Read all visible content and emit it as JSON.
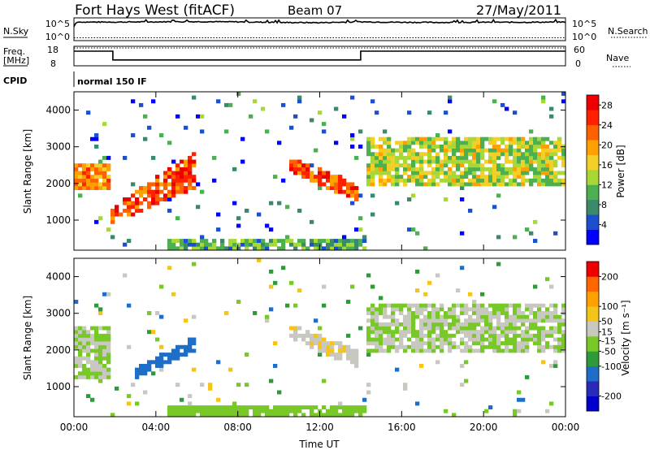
{
  "header": {
    "station": "Fort Hays West (fitACF)",
    "beam": "Beam 07",
    "date": "27/May/2011"
  },
  "noise_panel": {
    "left_label": "N.Sky",
    "right_label": "N.Search",
    "left_ticks": [
      "10^5",
      "10^0"
    ],
    "right_ticks": [
      "10^5",
      "10^0"
    ]
  },
  "freq_panel": {
    "left_label_1": "Freq.",
    "left_label_2": "[MHz]",
    "right_label": "Nave",
    "left_ticks": [
      "18",
      "8"
    ],
    "right_ticks": [
      "60",
      "0"
    ]
  },
  "cpid": {
    "label": "CPID",
    "value": "normal 150 IF"
  },
  "colors": {
    "power": [
      "#0000ff",
      "#1c4fd0",
      "#3a8a6a",
      "#4caf50",
      "#a8d838",
      "#f2d028",
      "#ffa000",
      "#ff6000",
      "#ff2000",
      "#ee0000"
    ],
    "velocity": [
      "#0000cc",
      "#2a2ab8",
      "#1c6ec8",
      "#2f9a3a",
      "#78c828",
      "#c8c8c0",
      "#f5c418",
      "#ffa000",
      "#ff6600",
      "#ee0000"
    ]
  },
  "chart_data": [
    {
      "type": "line",
      "title": "N.Sky / N.Search",
      "x_unit": "hours UT",
      "series": [
        {
          "name": "N.Sky",
          "x": [
            0.0,
            0.1,
            0.2,
            2,
            4,
            6,
            8,
            10,
            12,
            14,
            16,
            18,
            20,
            22,
            24
          ],
          "y_log10": [
            3.0,
            4.0,
            4.15,
            4.15,
            4.2,
            4.25,
            4.2,
            4.05,
            4.0,
            4.2,
            4.1,
            4.05,
            4.1,
            4.1,
            4.15
          ]
        },
        {
          "name": "N.Search",
          "x": [
            0,
            6,
            12,
            18,
            24
          ],
          "y_log10": [
            0.2,
            0.2,
            0.2,
            0.2,
            0.2
          ]
        }
      ]
    },
    {
      "type": "line",
      "title": "Freq. [MHz] / Nave",
      "x_unit": "hours UT",
      "series": [
        {
          "name": "Freq.",
          "x": [
            0,
            1.9,
            1.9,
            14.0,
            14.0,
            24
          ],
          "y": [
            15.5,
            15.5,
            11.0,
            11.0,
            15.5,
            15.5
          ]
        },
        {
          "name": "Nave",
          "x": [
            0,
            24
          ],
          "y": [
            55,
            55
          ]
        }
      ]
    },
    {
      "type": "heatmap",
      "ylabel": "Slant Range [km]",
      "xlabel": "Time UT",
      "xlim": [
        0,
        24
      ],
      "ylim": [
        180,
        4500
      ],
      "x_ticks": [
        "00:00",
        "04:00",
        "08:00",
        "12:00",
        "16:00",
        "20:00",
        "00:00"
      ],
      "y_ticks": [
        1000,
        2000,
        3000,
        4000
      ],
      "colorbar_label": "Power [dB]",
      "colorbar_ticks": [
        4,
        8,
        12,
        16,
        20,
        24,
        28
      ],
      "colorbar_range": [
        0,
        30
      ],
      "features": [
        {
          "name": "evening band",
          "x_range": [
            0,
            1.8
          ],
          "range_km": [
            1850,
            2550
          ],
          "value": 20
        },
        {
          "name": "rising arc",
          "x_range": [
            1.8,
            6
          ],
          "range_km_start": [
            900,
            1350
          ],
          "range_km_end": [
            1900,
            2900
          ],
          "value": 24
        },
        {
          "name": "noon arc",
          "x_range": [
            10.6,
            13.9
          ],
          "range_km_start": [
            2300,
            2700
          ],
          "range_km_end": [
            1500,
            2000
          ],
          "value": 24
        },
        {
          "name": "afternoon band",
          "x_range": [
            14.2,
            24
          ],
          "range_km": [
            1950,
            3300
          ],
          "value": 14
        },
        {
          "name": "ground scatter",
          "x_range": [
            4.6,
            14.2
          ],
          "range_km": [
            200,
            460
          ],
          "value": 10
        }
      ]
    },
    {
      "type": "heatmap",
      "ylabel": "Slant Range [km]",
      "xlabel": "Time UT",
      "xlim": [
        0,
        24
      ],
      "ylim": [
        180,
        4500
      ],
      "x_ticks": [
        "00:00",
        "04:00",
        "08:00",
        "12:00",
        "16:00",
        "20:00",
        "00:00"
      ],
      "y_ticks": [
        1000,
        2000,
        3000,
        4000
      ],
      "colorbar_label": "Velocity [m s⁻¹]",
      "colorbar_ticks": [
        -200,
        -100,
        -50,
        -15,
        15,
        50,
        100,
        200
      ],
      "colorbar_range": [
        -250,
        250
      ],
      "features": [
        {
          "name": "evening band",
          "x_range": [
            0,
            1.8
          ],
          "range_km": [
            1200,
            2600
          ],
          "value": 0
        },
        {
          "name": "rising arc",
          "x_range": [
            3,
            6
          ],
          "range_km_start": [
            1200,
            1500
          ],
          "range_km_end": [
            2000,
            2400
          ],
          "value": -120
        },
        {
          "name": "noon arc",
          "x_range": [
            10.6,
            13.9
          ],
          "range_km_start": [
            2300,
            2700
          ],
          "range_km_end": [
            1500,
            2000
          ],
          "value": 40
        },
        {
          "name": "afternoon band",
          "x_range": [
            14.2,
            24
          ],
          "range_km": [
            1950,
            3300
          ],
          "value": 0
        },
        {
          "name": "ground scatter",
          "x_range": [
            4.6,
            14.2
          ],
          "range_km": [
            200,
            460
          ],
          "value": -30
        }
      ]
    }
  ],
  "footer": {
    "xlabel": "Time UT"
  }
}
